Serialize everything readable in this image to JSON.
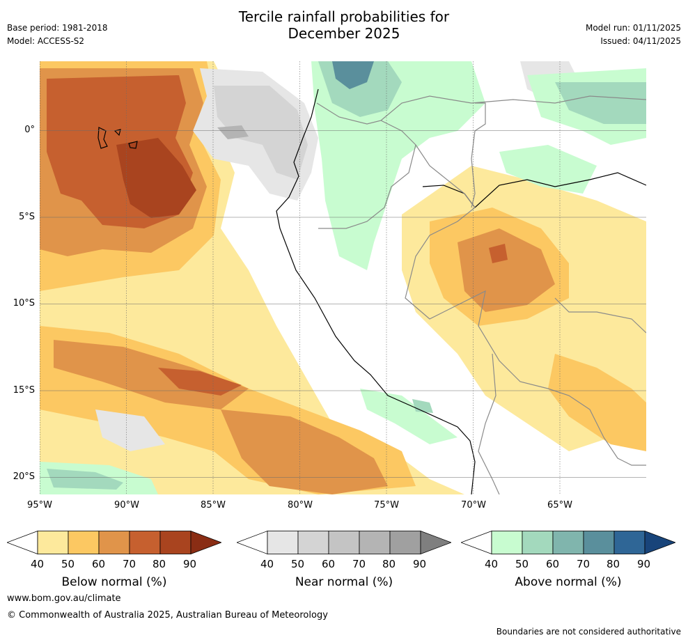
{
  "title": {
    "line1": "Tercile rainfall probabilities for",
    "line2": "December 2025"
  },
  "meta": {
    "base_period": "Base period: 1981-2018",
    "model": "Model: ACCESS-S2",
    "model_run": "Model run: 01/11/2025",
    "issued": "Issued: 04/11/2025"
  },
  "axes": {
    "lat_labels": [
      "0°",
      "5°S",
      "10°S",
      "15°S",
      "20°S"
    ],
    "lon_labels": [
      "95°W",
      "90°W",
      "85°W",
      "80°W",
      "75°W",
      "70°W",
      "65°W"
    ],
    "lat_range": [
      -21,
      4
    ],
    "lon_range": [
      -95,
      -60
    ]
  },
  "colorbars": [
    {
      "name": "below",
      "title": "Below normal (%)",
      "ticks": [
        "40",
        "50",
        "60",
        "70",
        "80",
        "90"
      ],
      "colors": [
        "#ffffff",
        "#fde99c",
        "#fcc862",
        "#e0944a",
        "#c6602f",
        "#a9441f",
        "#8a2d14"
      ]
    },
    {
      "name": "near",
      "title": "Near normal (%)",
      "ticks": [
        "40",
        "50",
        "60",
        "70",
        "80",
        "90"
      ],
      "colors": [
        "#ffffff",
        "#e6e6e6",
        "#d4d4d4",
        "#c4c4c4",
        "#b4b4b4",
        "#a0a0a0",
        "#7f7f7f"
      ]
    },
    {
      "name": "above",
      "title": "Above normal (%)",
      "ticks": [
        "40",
        "50",
        "60",
        "70",
        "80",
        "90"
      ],
      "colors": [
        "#ffffff",
        "#c8fcd0",
        "#a3d9bd",
        "#80b5ad",
        "#5a8f9c",
        "#2f6696",
        "#18447a"
      ]
    }
  ],
  "footer": {
    "url": "www.bom.gov.au/climate",
    "copyright": "© Commonwealth of Australia 2025, Australian Bureau of Meteorology",
    "disclaimer": "Boundaries are not considered authoritative"
  }
}
